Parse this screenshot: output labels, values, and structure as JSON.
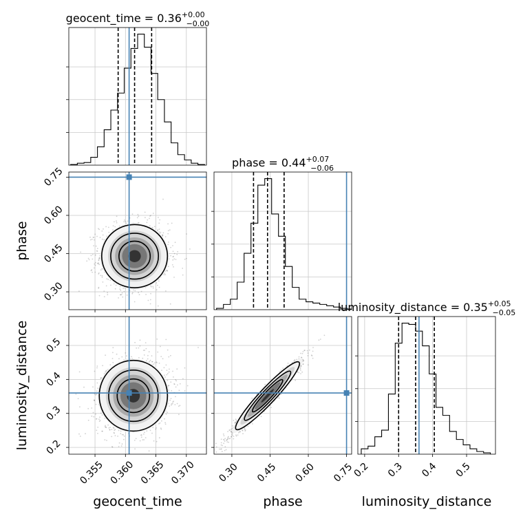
{
  "chart_data": {
    "type": "corner",
    "parameters": [
      "geocent_time",
      "phase",
      "luminosity_distance"
    ],
    "truths": {
      "geocent_time": 0.3606,
      "phase": 0.75,
      "luminosity_distance": 0.36
    },
    "truth_color": "#4682b4",
    "diagonal": [
      {
        "param": "geocent_time",
        "title_prefix": "geocent_time = 0.36",
        "title_sup": "+0.00",
        "title_sub": "−0.00",
        "quantiles": [
          0.3588,
          0.3615,
          0.3643
        ],
        "xlim": [
          0.3507,
          0.3733
        ],
        "ticks": [],
        "tick_labels": [],
        "hist_bins": [
          0.351,
          0.3521,
          0.3532,
          0.3543,
          0.3554,
          0.3565,
          0.3576,
          0.3587,
          0.3598,
          0.3609,
          0.362,
          0.3631,
          0.3642,
          0.3653,
          0.3664,
          0.3675,
          0.3686,
          0.3697,
          0.3708,
          0.3719,
          0.373
        ],
        "hist_counts": [
          0.5,
          1.5,
          2,
          6,
          14,
          27,
          42,
          55,
          74,
          89,
          100,
          90,
          70,
          50,
          33,
          17,
          8,
          4,
          1.5,
          0.5
        ]
      },
      {
        "param": "phase",
        "title_prefix": "phase = 0.44",
        "title_sup": "+0.07",
        "title_sub": "−0.06",
        "quantiles": [
          0.385,
          0.44,
          0.505
        ],
        "xlim": [
          0.23,
          0.77
        ],
        "ticks": [],
        "tick_labels": [],
        "hist_bins": [
          0.24,
          0.267,
          0.294,
          0.321,
          0.348,
          0.375,
          0.402,
          0.429,
          0.456,
          0.483,
          0.51,
          0.537,
          0.564,
          0.591,
          0.618,
          0.645,
          0.672,
          0.699,
          0.726,
          0.753,
          0.78
        ],
        "hist_counts": [
          1,
          4,
          8,
          21,
          43,
          66,
          95,
          100,
          73,
          56,
          33,
          17,
          8,
          6,
          5,
          4,
          3,
          2,
          1,
          0.5
        ]
      },
      {
        "param": "luminosity_distance",
        "title_prefix": "luminosity_distance = 0.35",
        "title_sup": "+0.05",
        "title_sub": "−0.05",
        "quantiles": [
          0.3,
          0.35,
          0.405
        ],
        "xlim": [
          0.18,
          0.585
        ],
        "ticks": [
          0.2,
          0.3,
          0.4,
          0.5
        ],
        "tick_labels": [
          "0.2",
          "0.3",
          "0.4",
          "0.5"
        ],
        "hist_bins": [
          0.19,
          0.21,
          0.23,
          0.25,
          0.27,
          0.29,
          0.31,
          0.33,
          0.35,
          0.37,
          0.39,
          0.41,
          0.43,
          0.45,
          0.47,
          0.49,
          0.51,
          0.53,
          0.55,
          0.57
        ],
        "hist_counts": [
          4,
          6,
          13,
          18,
          45,
          83,
          98,
          97,
          92,
          81,
          60,
          35,
          29,
          17,
          11,
          7,
          4,
          2,
          1
        ]
      }
    ],
    "panels_2d": [
      {
        "x": "geocent_time",
        "y": "phase",
        "xlim": [
          0.3507,
          0.3733
        ],
        "ylim": [
          0.23,
          0.77
        ],
        "center": [
          0.3615,
          0.44
        ],
        "spread": [
          0.0027,
          0.062
        ],
        "corr": 0.0,
        "yticks": [
          0.3,
          0.45,
          0.6,
          0.75
        ],
        "ytick_labels": [
          "0.30",
          "0.45",
          "0.60",
          "0.75"
        ]
      },
      {
        "x": "geocent_time",
        "y": "luminosity_distance",
        "xlim": [
          0.3507,
          0.3733
        ],
        "ylim": [
          0.18,
          0.585
        ],
        "center": [
          0.3613,
          0.352
        ],
        "spread": [
          0.0028,
          0.052
        ],
        "corr": 0.12,
        "xticks": [
          0.355,
          0.36,
          0.365,
          0.37
        ],
        "xtick_labels": [
          "0.355",
          "0.360",
          "0.365",
          "0.370"
        ],
        "yticks": [
          0.2,
          0.3,
          0.4,
          0.5
        ],
        "ytick_labels": [
          "0.2",
          "0.3",
          "0.4",
          "0.5"
        ]
      },
      {
        "x": "phase",
        "y": "luminosity_distance",
        "xlim": [
          0.23,
          0.77
        ],
        "ylim": [
          0.18,
          0.585
        ],
        "center": [
          0.44,
          0.352
        ],
        "spread": [
          0.065,
          0.052
        ],
        "corr": 0.97,
        "xticks": [
          0.3,
          0.45,
          0.6,
          0.75
        ],
        "xtick_labels": [
          "0.30",
          "0.45",
          "0.60",
          "0.75"
        ]
      }
    ],
    "axis_labels": {
      "geocent_time": "geocent_time",
      "phase": "phase",
      "luminosity_distance": "luminosity_distance"
    },
    "grid": true
  }
}
